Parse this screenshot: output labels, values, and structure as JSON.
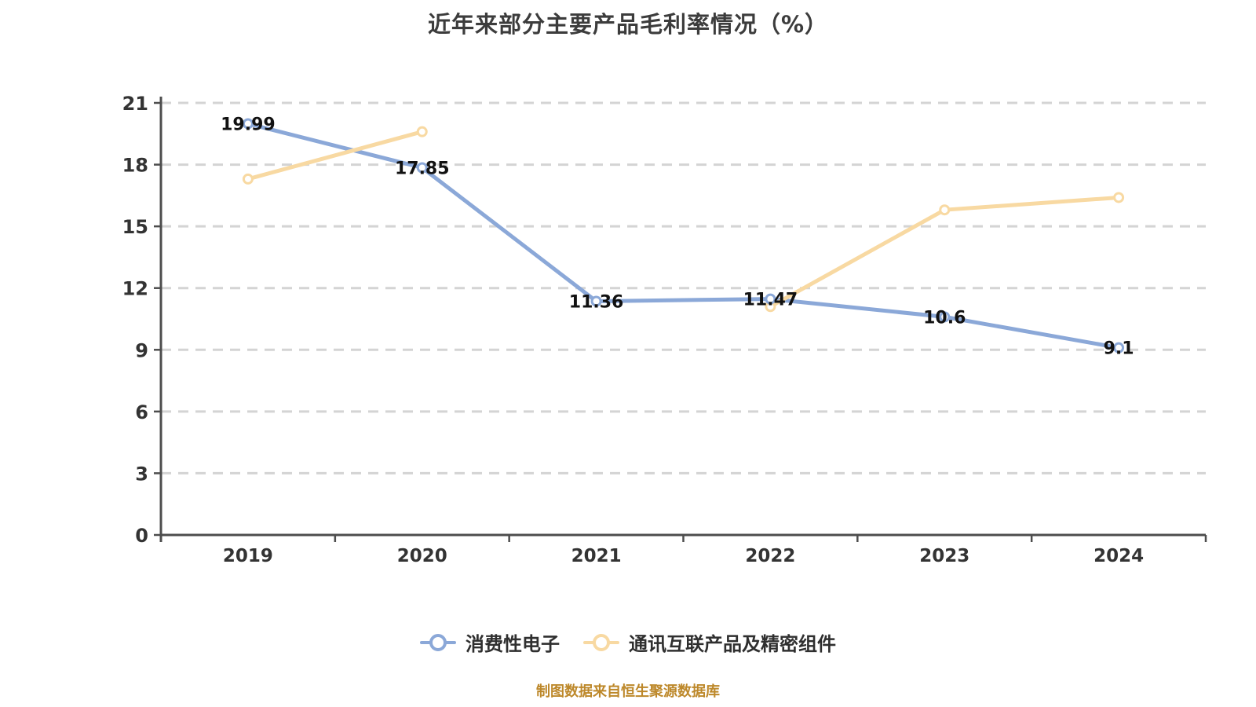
{
  "title": "近年来部分主要产品毛利率情况（%）",
  "footer": "制图数据来自恒生聚源数据库",
  "colors": {
    "series_blue": "#8ba8d8",
    "series_yellow": "#f8d9a2",
    "gridline": "#d4d4d4",
    "axis": "#4d4d4d",
    "tick_label": "#333333",
    "data_label": "#111111",
    "title_text": "#3c3c3c",
    "footer_text": "#bd882a"
  },
  "chart_data": {
    "type": "line",
    "title": "近年来部分主要产品毛利率情况（%）",
    "categories": [
      "2019",
      "2020",
      "2021",
      "2022",
      "2023",
      "2024"
    ],
    "series": [
      {
        "name": "消费性电子",
        "color": "#8ba8d8",
        "values": [
          19.99,
          17.85,
          11.36,
          11.47,
          10.6,
          9.1
        ],
        "labels": [
          "19.99",
          "17.85",
          "11.36",
          "11.47",
          "10.6",
          "9.1"
        ],
        "show_labels": true
      },
      {
        "name": "通讯互联产品及精密组件",
        "color": "#f8d9a2",
        "values": [
          17.3,
          19.6,
          null,
          11.1,
          15.8,
          16.4
        ],
        "labels": [],
        "show_labels": false
      }
    ],
    "xlabel": "",
    "ylabel": "",
    "ylim": [
      0,
      21
    ],
    "yticks": [
      0,
      3,
      6,
      9,
      12,
      15,
      18,
      21
    ],
    "grid": "dashed-horizontal",
    "legend_position": "bottom"
  }
}
